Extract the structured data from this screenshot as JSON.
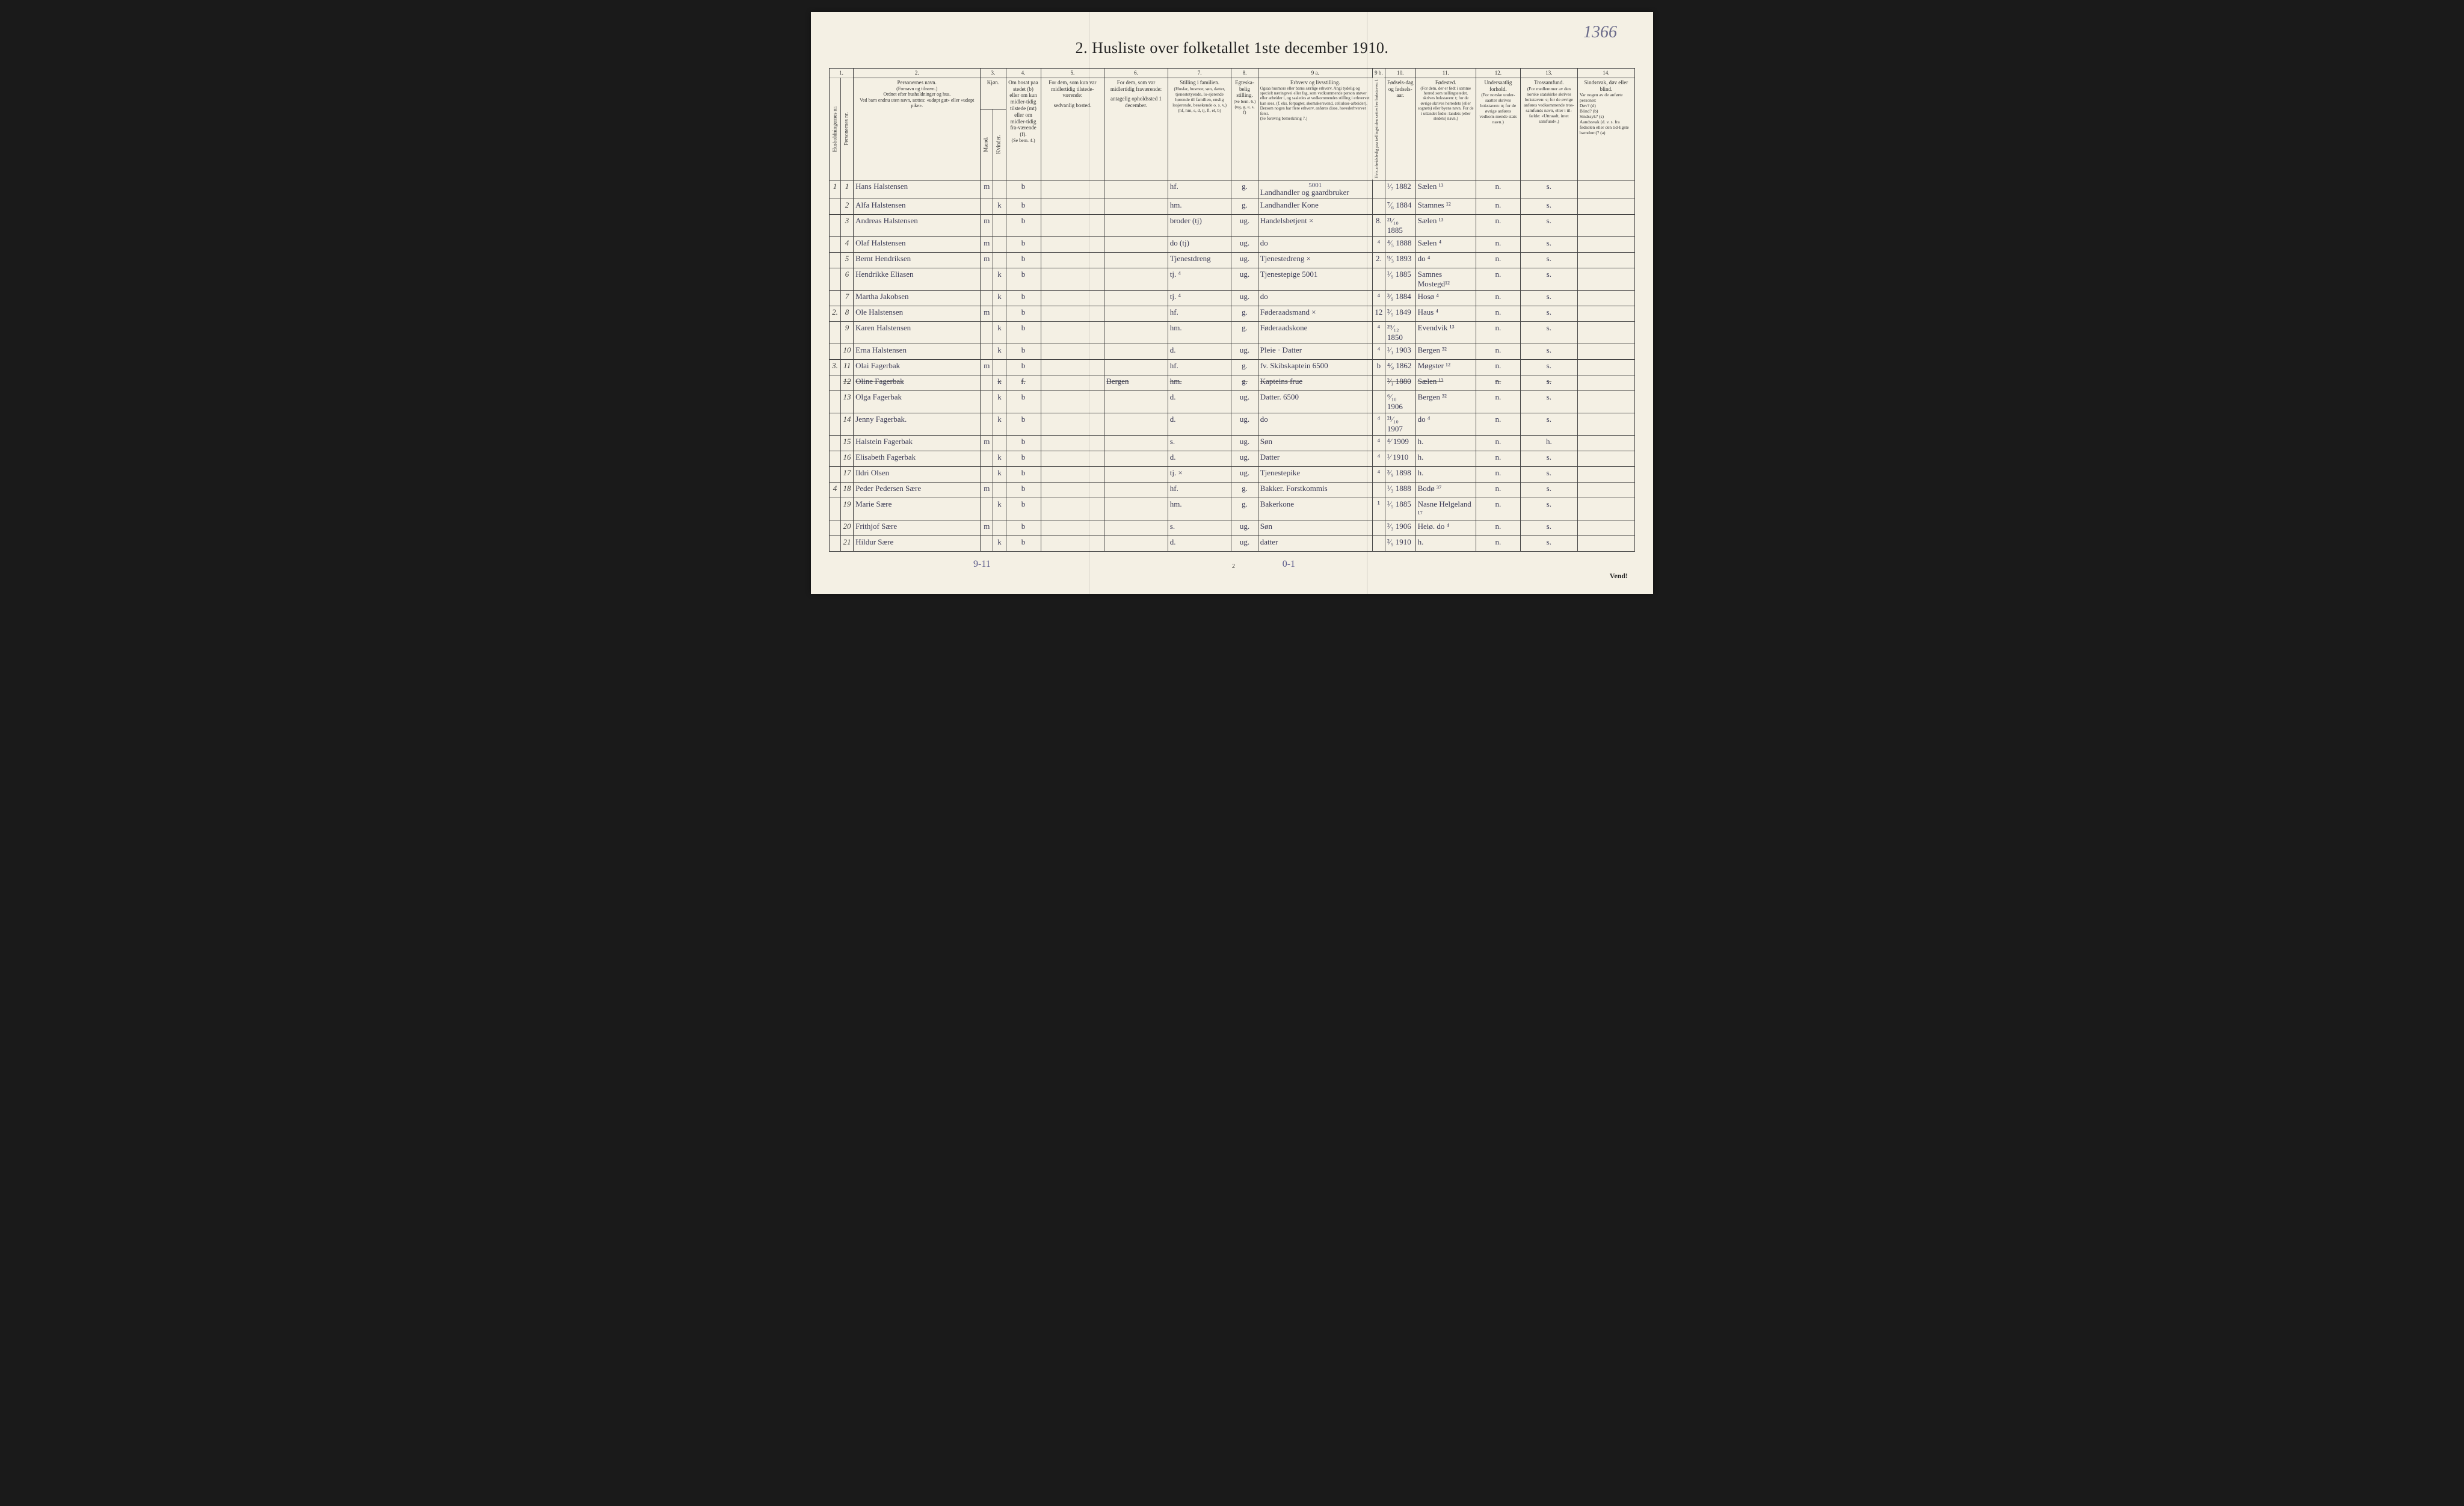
{
  "corner_note": "1366",
  "title": "2.  Husliste over folketallet 1ste december 1910.",
  "column_numbers": [
    "1.",
    "2.",
    "3.",
    "4.",
    "5.",
    "6.",
    "7.",
    "8.",
    "9 a.",
    "9 b.",
    "10.",
    "11.",
    "12.",
    "13.",
    "14."
  ],
  "headers": {
    "col1a": "Husholdningernes nr.",
    "col1b": "Personernes nr.",
    "col2_title": "Personernes navn.",
    "col2_sub": "(Fornavn og tilnavn.)\nOrdnet efter husholdninger og hus.\nVed barn endnu uten navn, sættes: «udøpt gut» eller «udøpt pike».",
    "col3_title": "Kjøn.",
    "col3_m": "Mænd.",
    "col3_k": "Kvinder.",
    "col3_sub": "m. k.",
    "col4_title": "Om bosat paa stedet (b) eller om kun midler-tidig tilstede (mt) eller om midler-tidig fra-værende (f).",
    "col4_sub": "(Se bem. 4.)",
    "col5_title": "For dem, som kun var midlertidig tilstede-værende:",
    "col5_sub": "sedvanlig bosted.",
    "col6_title": "For dem, som var midlertidig fraværende:",
    "col6_sub": "antagelig opholdssted 1 december.",
    "col7_title": "Stilling i familien.",
    "col7_sub": "(Husfar, husmor, søn, datter, tjenestetyende, lo-sjerende hørende til familien, enslig losjerende, besøkende o. s. v.)\n(hf, hm, s, d, tj, fl, el, b)",
    "col8_title": "Egteska-belig stilling.",
    "col8_sub": "(Se bem. 6.)\n(ug, g, e, s, f)",
    "col9a_title": "Erhverv og livsstilling.",
    "col9a_sub": "Ogsaa husmors eller barns særlige erhverv. Angi tydelig og specielt næringsvei eller fag, som vedkommende person utøver eller arbeider i, og saaledes at vedkommendes stilling i erhvervet kan sees, (f. eks. forpagter, skomakersvend, cellulose-arbeider). Dersom nogen har flere erhverv, anføres disse, hovederhvervet først.\n(Se forøvrig bemerkning 7.)",
    "col9b_title": "Hvis arbeidsledig paa tællingstiden sættes her bokstaven: l.",
    "col10_title": "Fødsels-dag og fødsels-aar.",
    "col11_title": "Fødested.",
    "col11_sub": "(For dem, der er født i samme herred som tællingsstedet, skrives bokstaven: t; for de øvrige skrives herredets (eller sognets) eller byens navn. For de i utlandet fødte: landets (eller stedets) navn.)",
    "col12_title": "Undersaatlig forhold.",
    "col12_sub": "(For norske under-saatter skrives bokstaven: n; for de øvrige anføres vedkom-mende stats navn.)",
    "col13_title": "Trossamfund.",
    "col13_sub": "(For medlemmer av den norske statskirke skrives bokstaven: s; for de øvrige anføres vedkommende tros-samfunds navn, eller i til-fælde: «Uttraadt, intet samfund».)",
    "col14_title": "Sindssvak, døv eller blind.",
    "col14_sub": "Var nogen av de anførte personer:\nDøv?        (d)\nBlind?      (b)\nSindssyk? (s)\nAandssvak (d. v. s. fra fødselen eller den tid-ligste barndom)? (a)"
  },
  "rows": [
    {
      "hnr": "1",
      "pnr": "1",
      "name": "Hans  Halstensen",
      "m": "m",
      "k": "",
      "b": "b",
      "c5": "",
      "c6": "",
      "c7": "hf.",
      "c8": "g.",
      "c9a": "Landhandler og gaardbruker",
      "c9b": "",
      "c10": "¹⁄₇ 1882",
      "c11": "Sælen ¹³",
      "c12": "n.",
      "c13": "s.",
      "c14": ""
    },
    {
      "hnr": "",
      "pnr": "2",
      "name": "Alfa  Halstensen",
      "m": "",
      "k": "k",
      "b": "b",
      "c5": "",
      "c6": "",
      "c7": "hm.",
      "c8": "g.",
      "c9a": "Landhandler Kone",
      "c9b": "",
      "c10": "⁷⁄₆ 1884",
      "c11": "Stamnes ¹²",
      "c12": "n.",
      "c13": "s.",
      "c14": ""
    },
    {
      "hnr": "",
      "pnr": "3",
      "name": "Andreas  Halstensen",
      "m": "m",
      "k": "",
      "b": "b",
      "c5": "",
      "c6": "",
      "c7": "broder (tj)",
      "c8": "ug.",
      "c9a": "Handelsbetjent ×",
      "c9b": "8.",
      "c10": "²¹⁄₁₀ 1885",
      "c11": "Sælen ¹³",
      "c12": "n.",
      "c13": "s.",
      "c14": ""
    },
    {
      "hnr": "",
      "pnr": "4",
      "name": "Olaf     Halstensen",
      "m": "m",
      "k": "",
      "b": "b",
      "c5": "",
      "c6": "",
      "c7": "do  (tj)",
      "c8": "ug.",
      "c9a": "do",
      "c9b": "⁴",
      "c10": "⁴⁄₅ 1888",
      "c11": "Sælen ⁴",
      "c12": "n.",
      "c13": "s.",
      "c14": ""
    },
    {
      "hnr": "",
      "pnr": "5",
      "name": "Bernt  Hendriksen",
      "m": "m",
      "k": "",
      "b": "b",
      "c5": "",
      "c6": "",
      "c7": "Tjenestdreng",
      "c8": "ug.",
      "c9a": "Tjenestedreng ×",
      "c9b": "2.",
      "c10": "⁹⁄₃ 1893",
      "c11": "do   ⁴",
      "c12": "n.",
      "c13": "s.",
      "c14": ""
    },
    {
      "hnr": "",
      "pnr": "6",
      "name": "Hendrikke  Eliasen",
      "m": "",
      "k": "k",
      "b": "b",
      "c5": "",
      "c6": "",
      "c7": "tj.    ⁴",
      "c8": "ug.",
      "c9a": "Tjenestepige   5001",
      "c9b": "",
      "c10": "¹⁄₉ 1885",
      "c11": "Samnes Mostegd¹²",
      "c12": "n.",
      "c13": "s.",
      "c14": ""
    },
    {
      "hnr": "",
      "pnr": "7",
      "name": "Martha   Jakobsen",
      "m": "",
      "k": "k",
      "b": "b",
      "c5": "",
      "c6": "",
      "c7": "tj.     ⁴",
      "c8": "ug.",
      "c9a": "do",
      "c9b": "⁴",
      "c10": "³⁄₉ 1884",
      "c11": "Hosø  ⁴",
      "c12": "n.",
      "c13": "s.",
      "c14": ""
    },
    {
      "hnr": "2.",
      "pnr": "8",
      "name": "Ole  Halstensen",
      "m": "m",
      "k": "",
      "b": "b",
      "c5": "",
      "c6": "",
      "c7": "hf.",
      "c8": "g.",
      "c9a": "Føderaadsmand ×",
      "c9b": "12",
      "c10": "²⁄₅ 1849",
      "c11": "Haus ⁴",
      "c12": "n.",
      "c13": "s.",
      "c14": ""
    },
    {
      "hnr": "",
      "pnr": "9",
      "name": "Karen  Halstensen",
      "m": "",
      "k": "k",
      "b": "b",
      "c5": "",
      "c6": "",
      "c7": "hm.",
      "c8": "g.",
      "c9a": "Føderaadskone",
      "c9b": "⁴",
      "c10": "²⁹⁄₁₂ 1850",
      "c11": "Evendvik ¹³",
      "c12": "n.",
      "c13": "s.",
      "c14": ""
    },
    {
      "hnr": "",
      "pnr": "10",
      "name": "Erna  Halstensen",
      "m": "",
      "k": "k",
      "b": "b",
      "c5": "",
      "c6": "",
      "c7": "d.",
      "c8": "ug.",
      "c9a": "Pleie · Datter",
      "c9b": "⁴",
      "c10": "¹⁄₁ 1903",
      "c11": "Bergen ³²",
      "c12": "n.",
      "c13": "s.",
      "c14": ""
    },
    {
      "hnr": "3.",
      "pnr": "11",
      "name": "Olai  Fagerbak",
      "m": "m",
      "k": "",
      "b": "b",
      "c5": "",
      "c6": "",
      "c7": "hf.",
      "c8": "g.",
      "c9a": "fv. Skibskaptein 6500",
      "c9b": "b",
      "c10": "⁴⁄₉ 1862",
      "c11": "Møgster ¹²",
      "c12": "n.",
      "c13": "s.",
      "c14": ""
    },
    {
      "hnr": "",
      "pnr": "12",
      "name": "Oline   Fagerbak",
      "m": "",
      "k": "k",
      "b": "f.",
      "c5": "",
      "c6": "Bergen",
      "c7": "hm.",
      "c8": "g.",
      "c9a": "Kapteins frue",
      "c9b": "",
      "c10": "²⁄₁ 1880",
      "c11": "Sælen ¹³",
      "c12": "n.",
      "c13": "s.",
      "c14": "",
      "struck": true
    },
    {
      "hnr": "",
      "pnr": "13",
      "name": "Olga   Fagerbak",
      "m": "",
      "k": "k",
      "b": "b",
      "c5": "",
      "c6": "",
      "c7": "d.",
      "c8": "ug.",
      "c9a": "Datter.    6500",
      "c9b": "",
      "c10": "⁶⁄₁₀ 1906",
      "c11": "Bergen ³²",
      "c12": "n.",
      "c13": "s.",
      "c14": ""
    },
    {
      "hnr": "",
      "pnr": "14",
      "name": "Jenny   Fagerbak.",
      "m": "",
      "k": "k",
      "b": "b",
      "c5": "",
      "c6": "",
      "c7": "d.",
      "c8": "ug.",
      "c9a": "do",
      "c9b": "⁴",
      "c10": "²¹⁄₁₀ 1907",
      "c11": "do  ⁴",
      "c12": "n.",
      "c13": "s.",
      "c14": ""
    },
    {
      "hnr": "",
      "pnr": "15",
      "name": "Halstein  Fagerbak",
      "m": "m",
      "k": "",
      "b": "b",
      "c5": "",
      "c6": "",
      "c7": "s.",
      "c8": "ug.",
      "c9a": "Søn",
      "c9b": "⁴",
      "c10": "⁴⁄ 1909",
      "c11": "h.",
      "c12": "n.",
      "c13": "h.",
      "c14": ""
    },
    {
      "hnr": "",
      "pnr": "16",
      "name": "Elisabeth  Fagerbak",
      "m": "",
      "k": "k",
      "b": "b",
      "c5": "",
      "c6": "",
      "c7": "d.",
      "c8": "ug.",
      "c9a": "Datter",
      "c9b": "⁴",
      "c10": "¹⁄ 1910",
      "c11": "h.",
      "c12": "n.",
      "c13": "s.",
      "c14": ""
    },
    {
      "hnr": "",
      "pnr": "17",
      "name": "Ildri     Olsen",
      "m": "",
      "k": "k",
      "b": "b",
      "c5": "",
      "c6": "",
      "c7": "tj.    ×",
      "c8": "ug.",
      "c9a": "Tjenestepike",
      "c9b": "⁴",
      "c10": "³⁄₉ 1898",
      "c11": "h.",
      "c12": "n.",
      "c13": "s.",
      "c14": ""
    },
    {
      "hnr": "4",
      "pnr": "18",
      "name": "Peder   Pedersen  Sære",
      "m": "m",
      "k": "",
      "b": "b",
      "c5": "",
      "c6": "",
      "c7": "hf.",
      "c8": "g.",
      "c9a": "Bakker. Forstkommis",
      "c9b": "",
      "c10": "¹⁄₃ 1888",
      "c11": "Bodø ³⁷",
      "c12": "n.",
      "c13": "s.",
      "c14": ""
    },
    {
      "hnr": "",
      "pnr": "19",
      "name": "Marie     Sære",
      "m": "",
      "k": "k",
      "b": "b",
      "c5": "",
      "c6": "",
      "c7": "hm.",
      "c8": "g.",
      "c9a": "Bakerkone",
      "c9b": "¹",
      "c10": "¹⁄₅ 1885",
      "c11": "Nasne Helgeland ¹⁷",
      "c12": "n.",
      "c13": "s.",
      "c14": ""
    },
    {
      "hnr": "",
      "pnr": "20",
      "name": "Frithjof    Sære",
      "m": "m",
      "k": "",
      "b": "b",
      "c5": "",
      "c6": "",
      "c7": "s.",
      "c8": "ug.",
      "c9a": "Søn",
      "c9b": "",
      "c10": "²⁄₃ 1906",
      "c11": "Heiø.  do ⁴",
      "c12": "n.",
      "c13": "s.",
      "c14": ""
    },
    {
      "hnr": "",
      "pnr": "21",
      "name": "Hildur     Sære",
      "m": "",
      "k": "k",
      "b": "b",
      "c5": "",
      "c6": "",
      "c7": "d.",
      "c8": "ug.",
      "c9a": "datter",
      "c9b": "",
      "c10": "²⁄₉ 1910",
      "c11": "h.",
      "c12": "n.",
      "c13": "s.",
      "c14": ""
    }
  ],
  "annotation_5001": "5001",
  "bottom_left": "9-11",
  "bottom_mid": "0-1",
  "vend": "Vend!",
  "page_bottom": "2"
}
